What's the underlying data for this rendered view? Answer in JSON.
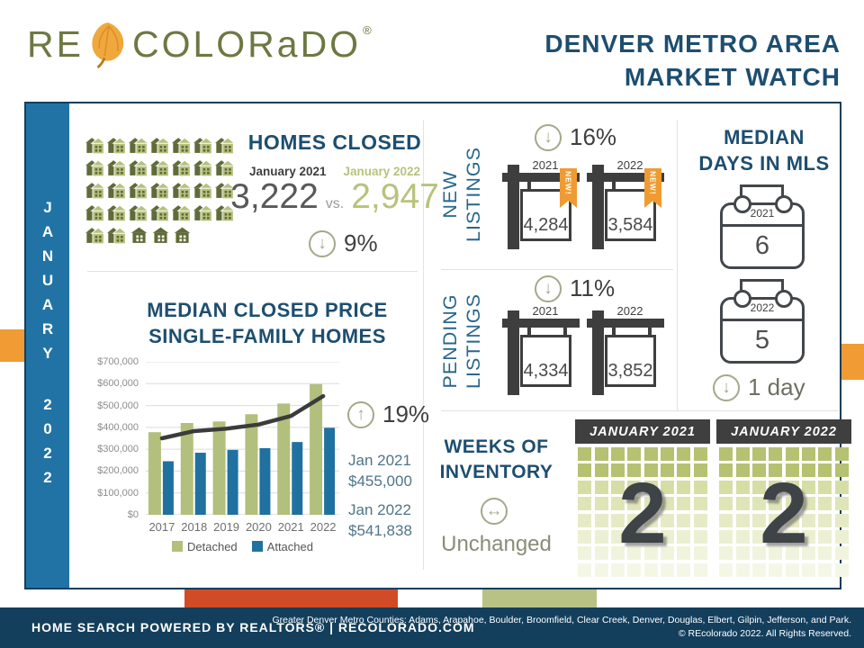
{
  "header": {
    "logo_re": "RE",
    "logo_colorado": "COLORaDO",
    "logo_reg": "®",
    "title_line1": "DENVER METRO AREA",
    "title_line2": "MARKET WATCH"
  },
  "sidebar": {
    "month": "JANUARY",
    "year": "2022"
  },
  "homes_closed": {
    "title": "HOMES CLOSED",
    "label_2021": "January 2021",
    "label_2022": "January 2022",
    "value_2021": "3,222",
    "vs": "vs.",
    "value_2022": "2,947",
    "change": "9%",
    "direction": "down",
    "icon_grid": {
      "rows": [
        {
          "pairs": 7,
          "singles": 0
        },
        {
          "pairs": 7,
          "singles": 0
        },
        {
          "pairs": 7,
          "singles": 0
        },
        {
          "pairs": 7,
          "singles": 0
        },
        {
          "pairs": 2,
          "singles": 3
        }
      ]
    }
  },
  "median_price": {
    "title_line1": "MEDIAN CLOSED PRICE",
    "title_line2": "SINGLE-FAMILY HOMES",
    "change": "19%",
    "direction": "up",
    "jan2021_label": "Jan 2021",
    "jan2021_value": "$455,000",
    "jan2022_label": "Jan 2022",
    "jan2022_value": "$541,838"
  },
  "chart_data": {
    "type": "bar",
    "title": "Median Closed Price Single-Family Homes",
    "categories": [
      "2017",
      "2018",
      "2019",
      "2020",
      "2021",
      "2022"
    ],
    "series": [
      {
        "name": "Detached",
        "type": "bar",
        "color": "#b3bf7d",
        "values": [
          378000,
          420000,
          427000,
          460000,
          509000,
          598000
        ]
      },
      {
        "name": "Attached",
        "type": "bar",
        "color": "#20719f",
        "values": [
          245000,
          284000,
          297000,
          305000,
          333000,
          398000
        ]
      },
      {
        "name": "Median trend line",
        "type": "line",
        "color": "#3b3b3b",
        "values": [
          350000,
          383000,
          394000,
          413000,
          452000,
          543000
        ]
      }
    ],
    "ylim": [
      0,
      700000
    ],
    "ytick_step": 100000,
    "ytick_prefix": "$",
    "grid": true,
    "legend": [
      "Detached",
      "Attached"
    ],
    "legend_position": "bottom"
  },
  "new_listings": {
    "label_line1": "NEW",
    "label_line2": "LISTINGS",
    "change": "16%",
    "direction": "down",
    "ribbon": "NEW!",
    "y2021": {
      "year": "2021",
      "value": "4,284"
    },
    "y2022": {
      "year": "2022",
      "value": "3,584"
    }
  },
  "pending_listings": {
    "label_line1": "PENDING",
    "label_line2": "LISTINGS",
    "change": "11%",
    "direction": "down",
    "y2021": {
      "year": "2021",
      "value": "4,334"
    },
    "y2022": {
      "year": "2022",
      "value": "3,852"
    }
  },
  "median_days": {
    "title_line1": "MEDIAN",
    "title_line2": "DAYS IN MLS",
    "y2021": {
      "year": "2021",
      "value": "6"
    },
    "y2022": {
      "year": "2022",
      "value": "5"
    },
    "change": "1 day",
    "direction": "down"
  },
  "weeks_inventory": {
    "title_line1": "WEEKS OF",
    "title_line2": "INVENTORY",
    "status": "Unchanged",
    "cal_2021": {
      "header": "JANUARY 2021",
      "value": "2"
    },
    "cal_2022": {
      "header": "JANUARY 2022",
      "value": "2"
    },
    "grid_row_colors": [
      "#b6c171",
      "#b6c171",
      "#d6dea6",
      "#dfe5b7",
      "#e6ebc6",
      "#ecf0d2",
      "#f1f4dd",
      "#f5f7e6"
    ],
    "grid_cols": 8,
    "grid_rows": 8
  },
  "footer": {
    "left": "HOME SEARCH POWERED BY REALTORS®   |   RECOLORADO.COM",
    "right_line1": "Greater Denver Metro Counties:  Adams, Arapahoe,  Boulder,  Broomfield,  Clear Creek, Denver, Douglas,  Elbert, Gilpin,  Jefferson, and Park.",
    "right_line2": "© REcolorado 2022. All Rights Reserved."
  },
  "colors": {
    "navy": "#133f5d",
    "heading_teal": "#1d4e70",
    "sidebar_blue": "#2173a5",
    "accent_orange": "#f09b33",
    "ribbon_orange": "#ef9b31",
    "strip_red": "#d24b27",
    "strip_sage": "#b7c284",
    "green_light": "#b3bf7d",
    "green_dark": "#5f6b38",
    "bar_blue": "#20719f",
    "arrow_olive": "#a6a78b",
    "sign_gray": "#3e3e3e"
  },
  "glyphs": {
    "down": "↓",
    "up": "↑",
    "unchanged": "↔"
  }
}
